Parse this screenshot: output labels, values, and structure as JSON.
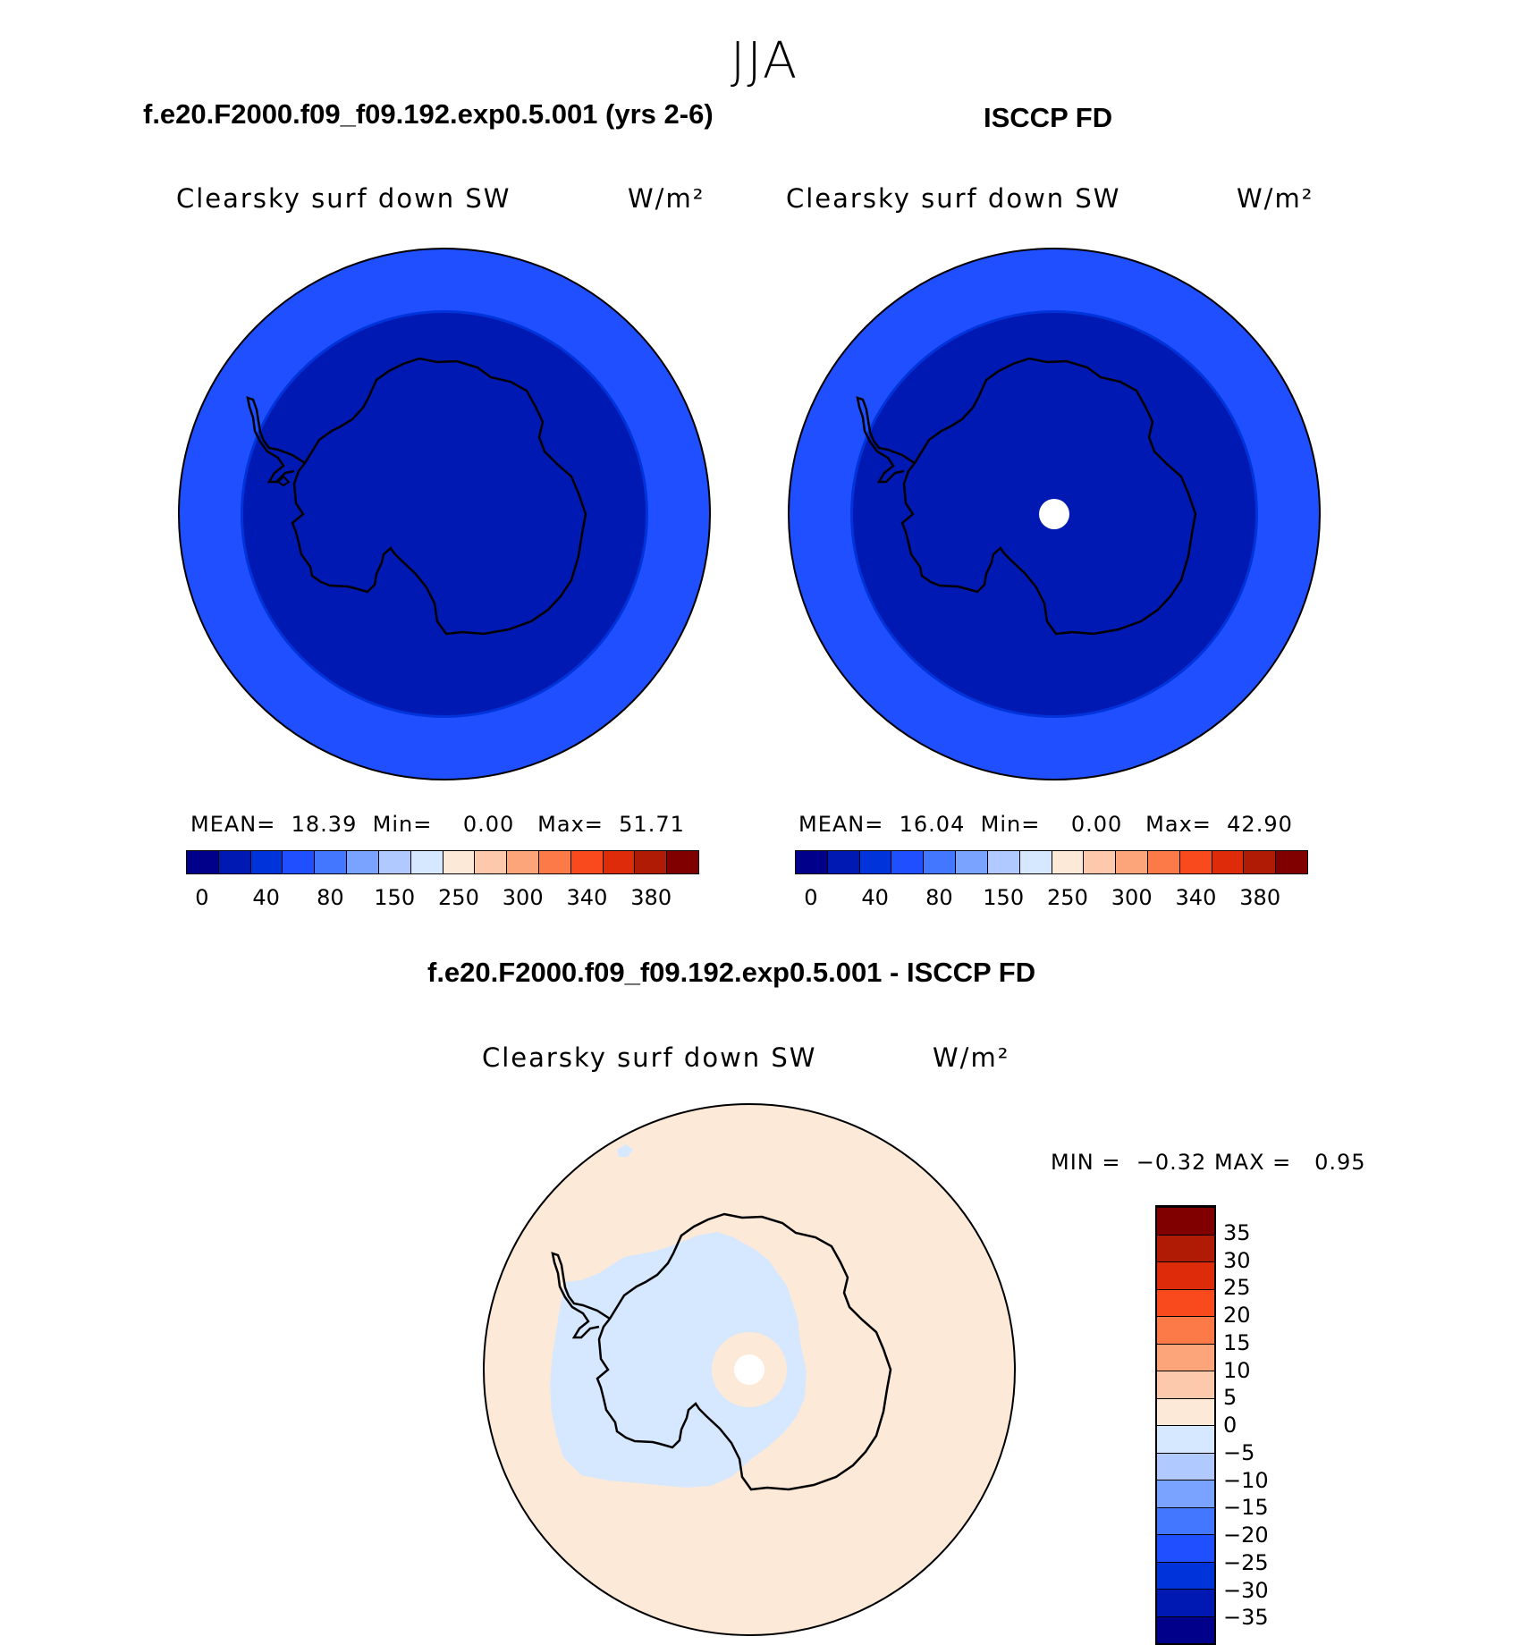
{
  "season": "JJA",
  "panels": [
    {
      "title": "f.e20.F2000.f09_f09.192.exp0.5.001 (yrs 2-6)",
      "variable": "Clearsky surf down SW",
      "units": "W/m²",
      "stats": {
        "mean_label": "MEAN=",
        "mean": "18.39",
        "min_label": "Min=",
        "min": "0.00",
        "max_label": "Max=",
        "max": "51.71"
      }
    },
    {
      "title": "ISCCP FD",
      "variable": "Clearsky surf down SW",
      "units": "W/m²",
      "stats": {
        "mean_label": "MEAN=",
        "mean": "16.04",
        "min_label": "Min=",
        "min": "0.00",
        "max_label": "Max=",
        "max": "42.90"
      }
    },
    {
      "title": "f.e20.F2000.f09_f09.192.exp0.5.001 - ISCCP FD",
      "variable": "Clearsky surf down SW",
      "units": "W/m²",
      "stats": {
        "min_label": "MIN =",
        "min": "−0.32",
        "max_label": "MAX =",
        "max": "0.95"
      }
    }
  ],
  "chart_data": [
    {
      "type": "heatmap",
      "projection": "south polar stereographic",
      "title": "f.e20.F2000.f09_f09.192.exp0.5.001 (yrs 2-6)",
      "variable": "Clearsky surf down SW",
      "units": "W/m²",
      "mean": 18.39,
      "min": 0.0,
      "max": 51.71,
      "colorbar_ticks": [
        "0",
        "40",
        "80",
        "150",
        "250",
        "300",
        "340",
        "380"
      ],
      "colors": [
        "#00008b",
        "#0019b3",
        "#0033d9",
        "#1f4fff",
        "#4477ff",
        "#7aa3ff",
        "#b0caff",
        "#d6e8ff",
        "#fde9d8",
        "#fcc9ac",
        "#fca57a",
        "#fb7a48",
        "#f84a1c",
        "#de2c0b",
        "#b01b06",
        "#800000"
      ]
    },
    {
      "type": "heatmap",
      "projection": "south polar stereographic",
      "title": "ISCCP FD",
      "variable": "Clearsky surf down SW",
      "units": "W/m²",
      "mean": 16.04,
      "min": 0.0,
      "max": 42.9,
      "colorbar_ticks": [
        "0",
        "40",
        "80",
        "150",
        "250",
        "300",
        "340",
        "380"
      ],
      "colors": [
        "#00008b",
        "#0019b3",
        "#0033d9",
        "#1f4fff",
        "#4477ff",
        "#7aa3ff",
        "#b0caff",
        "#d6e8ff",
        "#fde9d8",
        "#fcc9ac",
        "#fca57a",
        "#fb7a48",
        "#f84a1c",
        "#de2c0b",
        "#b01b06",
        "#800000"
      ]
    },
    {
      "type": "heatmap",
      "projection": "south polar stereographic",
      "title": "f.e20.F2000.f09_f09.192.exp0.5.001 - ISCCP FD",
      "variable": "Clearsky surf down SW",
      "units": "W/m²",
      "min": -0.32,
      "max": 0.95,
      "colorbar_ticks": [
        "35",
        "30",
        "25",
        "20",
        "15",
        "10",
        "5",
        "0",
        "−5",
        "−10",
        "−15",
        "−20",
        "−25",
        "−30",
        "−35"
      ],
      "colors_bottom_to_top": [
        "#00008b",
        "#0019b3",
        "#0033d9",
        "#1f4fff",
        "#4477ff",
        "#7aa3ff",
        "#b0caff",
        "#d6e8ff",
        "#fde9d8",
        "#fcc9ac",
        "#fca57a",
        "#fb7a48",
        "#f84a1c",
        "#de2c0b",
        "#b01b06",
        "#800000"
      ]
    }
  ],
  "colors": {
    "outer_ring": "#1f4fff",
    "middle_ring": "#0033d9",
    "inner_disc": "#0019b3",
    "diff_positive": "#fde9d8",
    "diff_negative": "#d6e8ff"
  }
}
